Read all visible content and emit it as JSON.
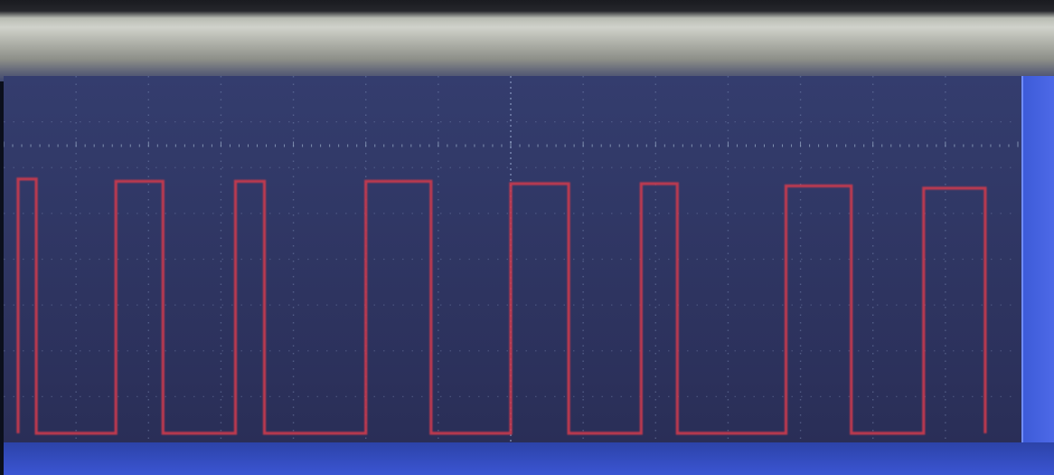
{
  "display": {
    "colors": {
      "screen_top": "#343d6e",
      "screen_bottom": "#292d55",
      "grid": "#8fa0c8",
      "baseline_trace": "#9fb4cf",
      "pulse_trace": "#c63a4e",
      "status_bar": "#3149be"
    }
  },
  "chart_data": {
    "type": "line",
    "title": "",
    "xlabel": "",
    "ylabel": "",
    "grid": true,
    "legend": "none",
    "xlim": [
      0,
      14
    ],
    "ylim": [
      -4,
      4
    ],
    "series": [
      {
        "name": "",
        "color": "#9fb4cf",
        "x": [
          0,
          14
        ],
        "y": [
          2.45,
          2.45
        ]
      },
      {
        "name": "",
        "color": "#c63a4e",
        "x": [
          0.2,
          0.2,
          0.45,
          0.45,
          1.55,
          1.55,
          2.2,
          2.2,
          3.2,
          3.2,
          3.6,
          3.6,
          5.0,
          5.0,
          5.9,
          5.9,
          7.0,
          7.0,
          7.8,
          7.8,
          8.8,
          8.8,
          9.3,
          9.3,
          10.8,
          10.8,
          11.7,
          11.7,
          12.7,
          12.7,
          13.55,
          13.55
        ],
        "y": [
          -3.8,
          1.75,
          1.75,
          -3.8,
          -3.8,
          1.7,
          1.7,
          -3.8,
          -3.8,
          1.7,
          1.7,
          -3.8,
          -3.8,
          1.7,
          1.7,
          -3.8,
          -3.8,
          1.65,
          1.65,
          -3.8,
          -3.8,
          1.65,
          1.65,
          -3.8,
          -3.8,
          1.6,
          1.6,
          -3.8,
          -3.8,
          1.55,
          1.55,
          -3.8
        ]
      }
    ]
  }
}
